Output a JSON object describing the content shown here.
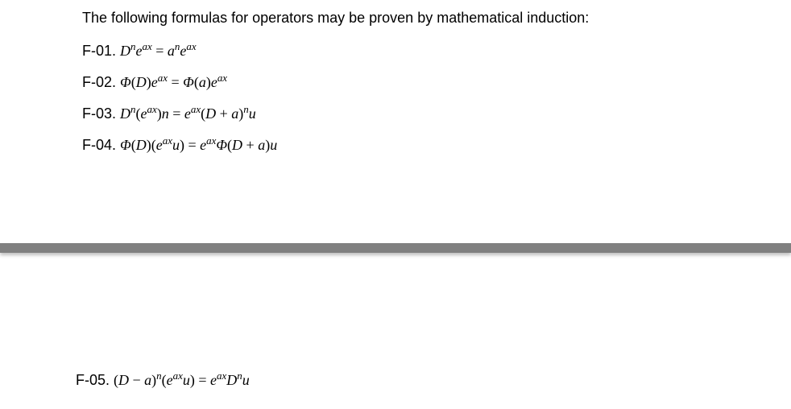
{
  "intro": "The following formulas for operators may be proven by mathematical induction:",
  "formulas": {
    "f01": {
      "label": "F-01. ",
      "html": "D<sup>n</sup>e<sup>ax</sup> <span class='up'>=</span> a<sup>n</sup>e<sup>ax</sup>"
    },
    "f02": {
      "label": "F-02. ",
      "html": "Φ<span class='up'>(</span>D<span class='up'>)</span>e<sup>ax</sup> <span class='up'>=</span> Φ<span class='up'>(</span>a<span class='up'>)</span>e<sup>ax</sup>"
    },
    "f03": {
      "label": "F-03. ",
      "html": "D<sup>n</sup><span class='up'>(</span>e<sup>ax</sup><span class='up'>)</span>n <span class='up'>=</span> e<sup>ax</sup><span class='up'>(</span>D <span class='up'>+</span> a<span class='up'>)</span><sup>n</sup>u"
    },
    "f04": {
      "label": "F-04. ",
      "html": "Φ<span class='up'>(</span>D<span class='up'>)(</span>e<sup>ax</sup>u<span class='up'>)</span> <span class='up'>=</span> e<sup>ax</sup>Φ<span class='up'>(</span>D <span class='up'>+</span> a<span class='up'>)</span>u"
    },
    "f05": {
      "label": "F-05. ",
      "html": "<span class='up'>(</span>D <span class='up'>−</span> a<span class='up'>)</span><sup>n</sup><span class='up'>(</span>e<sup>ax</sup>u<span class='up'>)</span> <span class='up'>=</span> e<sup>ax</sup>D<sup>n</sup>u"
    }
  },
  "style": {
    "text_color": "#000000",
    "background_color": "#ffffff",
    "separator_color": "#808080",
    "base_font_size_pt": 13,
    "math_font": "Cambria Math"
  }
}
